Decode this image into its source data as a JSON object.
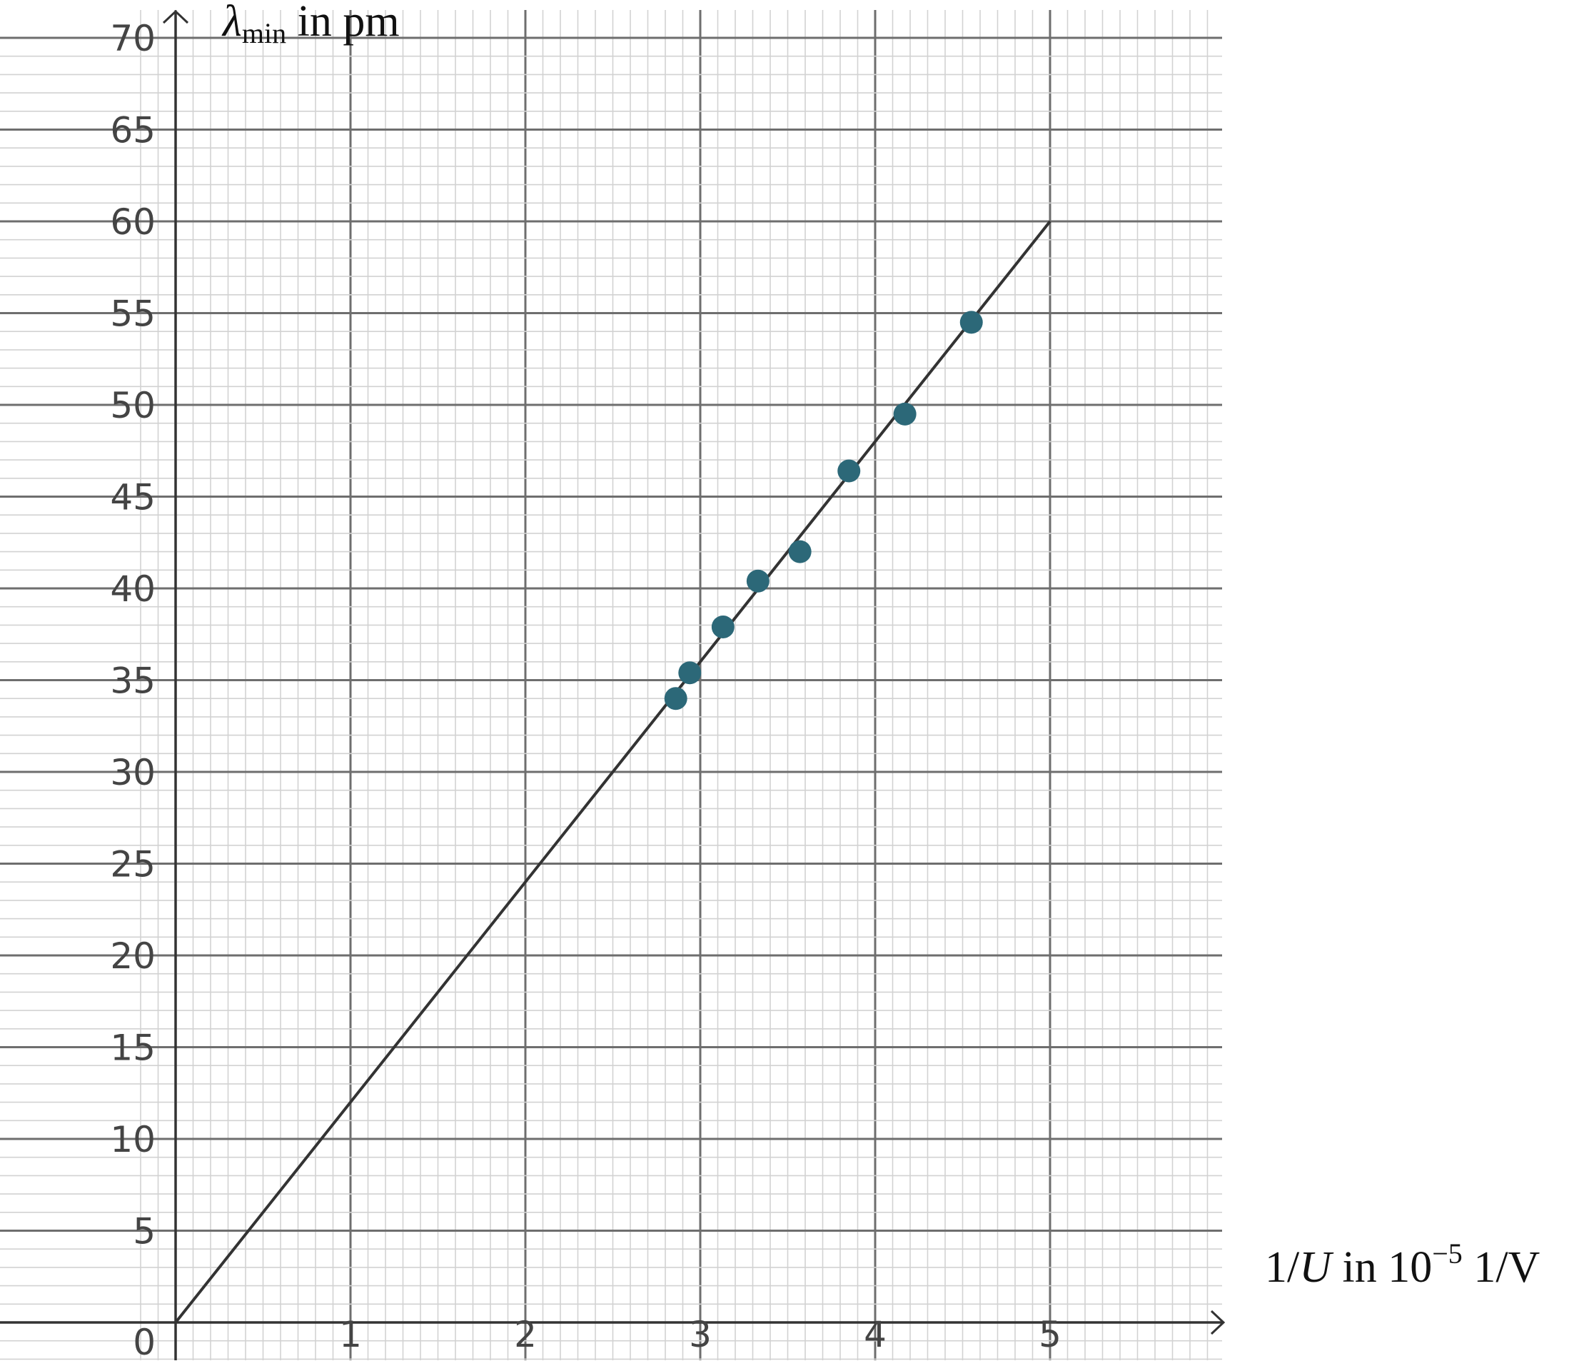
{
  "chart_data": {
    "type": "scatter",
    "title": "",
    "ylabel": {
      "symbol": "λ",
      "subscript": "min",
      "unit_text": " in pm"
    },
    "xlabel": {
      "prefix": "1/",
      "variable": "U",
      "middle": " in 10",
      "exponent": "−5",
      "suffix": " 1/V"
    },
    "xlim": [
      0,
      6
    ],
    "ylim": [
      0,
      70
    ],
    "x_ticks": [
      "1",
      "2",
      "3",
      "4",
      "5"
    ],
    "y_ticks": [
      "0",
      "5",
      "10",
      "15",
      "20",
      "25",
      "30",
      "35",
      "40",
      "45",
      "50",
      "55",
      "60",
      "65",
      "70"
    ],
    "grid": true,
    "points": [
      {
        "x": 2.86,
        "y": 34.0
      },
      {
        "x": 2.94,
        "y": 35.4
      },
      {
        "x": 3.13,
        "y": 37.9
      },
      {
        "x": 3.33,
        "y": 40.4
      },
      {
        "x": 3.57,
        "y": 42.0
      },
      {
        "x": 3.85,
        "y": 46.4
      },
      {
        "x": 4.17,
        "y": 49.5
      },
      {
        "x": 4.55,
        "y": 54.5
      }
    ],
    "fit_line": {
      "x": [
        0,
        5
      ],
      "y": [
        0,
        60
      ]
    },
    "point_color": "#2c6878",
    "line_color": "#333333"
  }
}
